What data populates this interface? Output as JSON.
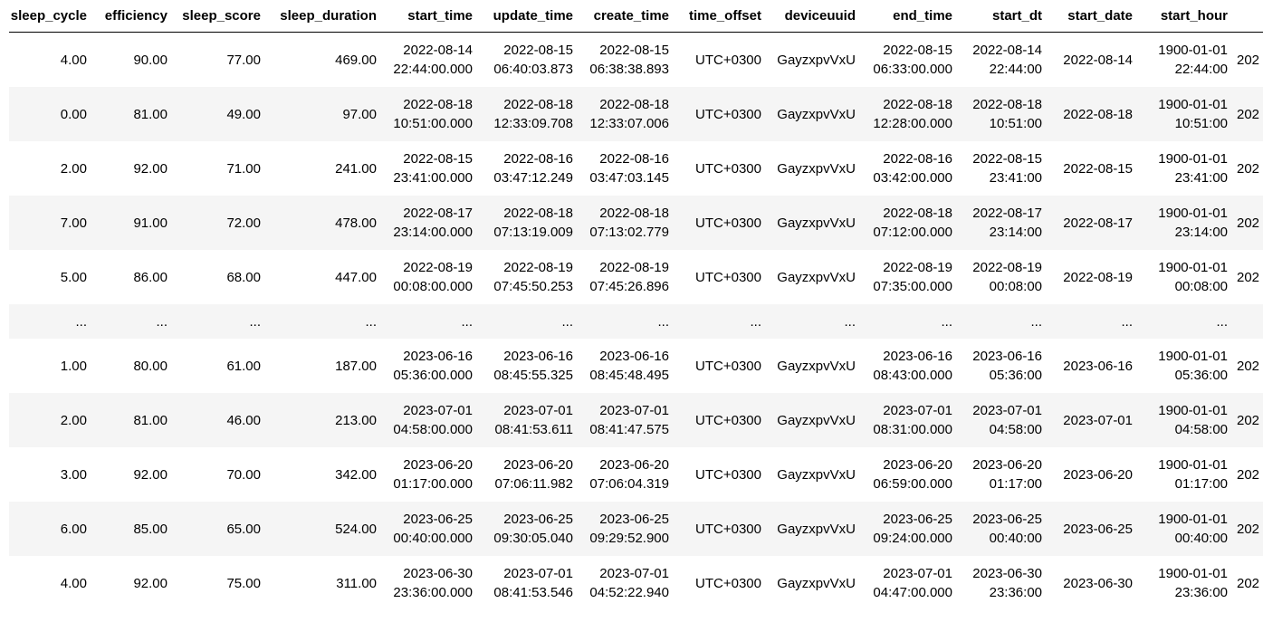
{
  "columns": [
    "sleep_cycle",
    "efficiency",
    "sleep_score",
    "sleep_duration",
    "start_time",
    "update_time",
    "create_time",
    "time_offset",
    "deviceuuid",
    "end_time",
    "start_dt",
    "start_date",
    "start_hour",
    ""
  ],
  "rows": [
    [
      "4.00",
      "90.00",
      "77.00",
      "469.00",
      [
        "2022-08-14",
        "22:44:00.000"
      ],
      [
        "2022-08-15",
        "06:40:03.873"
      ],
      [
        "2022-08-15",
        "06:38:38.893"
      ],
      "UTC+0300",
      "GayzxpvVxU",
      [
        "2022-08-15",
        "06:33:00.000"
      ],
      [
        "2022-08-14",
        "22:44:00"
      ],
      "2022-08-14",
      [
        "1900-01-01",
        "22:44:00"
      ],
      "202"
    ],
    [
      "0.00",
      "81.00",
      "49.00",
      "97.00",
      [
        "2022-08-18",
        "10:51:00.000"
      ],
      [
        "2022-08-18",
        "12:33:09.708"
      ],
      [
        "2022-08-18",
        "12:33:07.006"
      ],
      "UTC+0300",
      "GayzxpvVxU",
      [
        "2022-08-18",
        "12:28:00.000"
      ],
      [
        "2022-08-18",
        "10:51:00"
      ],
      "2022-08-18",
      [
        "1900-01-01",
        "10:51:00"
      ],
      "202"
    ],
    [
      "2.00",
      "92.00",
      "71.00",
      "241.00",
      [
        "2022-08-15",
        "23:41:00.000"
      ],
      [
        "2022-08-16",
        "03:47:12.249"
      ],
      [
        "2022-08-16",
        "03:47:03.145"
      ],
      "UTC+0300",
      "GayzxpvVxU",
      [
        "2022-08-16",
        "03:42:00.000"
      ],
      [
        "2022-08-15",
        "23:41:00"
      ],
      "2022-08-15",
      [
        "1900-01-01",
        "23:41:00"
      ],
      "202"
    ],
    [
      "7.00",
      "91.00",
      "72.00",
      "478.00",
      [
        "2022-08-17",
        "23:14:00.000"
      ],
      [
        "2022-08-18",
        "07:13:19.009"
      ],
      [
        "2022-08-18",
        "07:13:02.779"
      ],
      "UTC+0300",
      "GayzxpvVxU",
      [
        "2022-08-18",
        "07:12:00.000"
      ],
      [
        "2022-08-17",
        "23:14:00"
      ],
      "2022-08-17",
      [
        "1900-01-01",
        "23:14:00"
      ],
      "202"
    ],
    [
      "5.00",
      "86.00",
      "68.00",
      "447.00",
      [
        "2022-08-19",
        "00:08:00.000"
      ],
      [
        "2022-08-19",
        "07:45:50.253"
      ],
      [
        "2022-08-19",
        "07:45:26.896"
      ],
      "UTC+0300",
      "GayzxpvVxU",
      [
        "2022-08-19",
        "07:35:00.000"
      ],
      [
        "2022-08-19",
        "00:08:00"
      ],
      "2022-08-19",
      [
        "1900-01-01",
        "00:08:00"
      ],
      "202"
    ],
    [
      "...",
      "...",
      "...",
      "...",
      "...",
      "...",
      "...",
      "...",
      "...",
      "...",
      "...",
      "...",
      "...",
      "..."
    ],
    [
      "1.00",
      "80.00",
      "61.00",
      "187.00",
      [
        "2023-06-16",
        "05:36:00.000"
      ],
      [
        "2023-06-16",
        "08:45:55.325"
      ],
      [
        "2023-06-16",
        "08:45:48.495"
      ],
      "UTC+0300",
      "GayzxpvVxU",
      [
        "2023-06-16",
        "08:43:00.000"
      ],
      [
        "2023-06-16",
        "05:36:00"
      ],
      "2023-06-16",
      [
        "1900-01-01",
        "05:36:00"
      ],
      "202"
    ],
    [
      "2.00",
      "81.00",
      "46.00",
      "213.00",
      [
        "2023-07-01",
        "04:58:00.000"
      ],
      [
        "2023-07-01",
        "08:41:53.611"
      ],
      [
        "2023-07-01",
        "08:41:47.575"
      ],
      "UTC+0300",
      "GayzxpvVxU",
      [
        "2023-07-01",
        "08:31:00.000"
      ],
      [
        "2023-07-01",
        "04:58:00"
      ],
      "2023-07-01",
      [
        "1900-01-01",
        "04:58:00"
      ],
      "202"
    ],
    [
      "3.00",
      "92.00",
      "70.00",
      "342.00",
      [
        "2023-06-20",
        "01:17:00.000"
      ],
      [
        "2023-06-20",
        "07:06:11.982"
      ],
      [
        "2023-06-20",
        "07:06:04.319"
      ],
      "UTC+0300",
      "GayzxpvVxU",
      [
        "2023-06-20",
        "06:59:00.000"
      ],
      [
        "2023-06-20",
        "01:17:00"
      ],
      "2023-06-20",
      [
        "1900-01-01",
        "01:17:00"
      ],
      "202"
    ],
    [
      "6.00",
      "85.00",
      "65.00",
      "524.00",
      [
        "2023-06-25",
        "00:40:00.000"
      ],
      [
        "2023-06-25",
        "09:30:05.040"
      ],
      [
        "2023-06-25",
        "09:29:52.900"
      ],
      "UTC+0300",
      "GayzxpvVxU",
      [
        "2023-06-25",
        "09:24:00.000"
      ],
      [
        "2023-06-25",
        "00:40:00"
      ],
      "2023-06-25",
      [
        "1900-01-01",
        "00:40:00"
      ],
      "202"
    ],
    [
      "4.00",
      "92.00",
      "75.00",
      "311.00",
      [
        "2023-06-30",
        "23:36:00.000"
      ],
      [
        "2023-07-01",
        "08:41:53.546"
      ],
      [
        "2023-07-01",
        "04:52:22.940"
      ],
      "UTC+0300",
      "GayzxpvVxU",
      [
        "2023-07-01",
        "04:47:00.000"
      ],
      [
        "2023-06-30",
        "23:36:00"
      ],
      "2023-06-30",
      [
        "1900-01-01",
        "23:36:00"
      ],
      "202"
    ]
  ]
}
